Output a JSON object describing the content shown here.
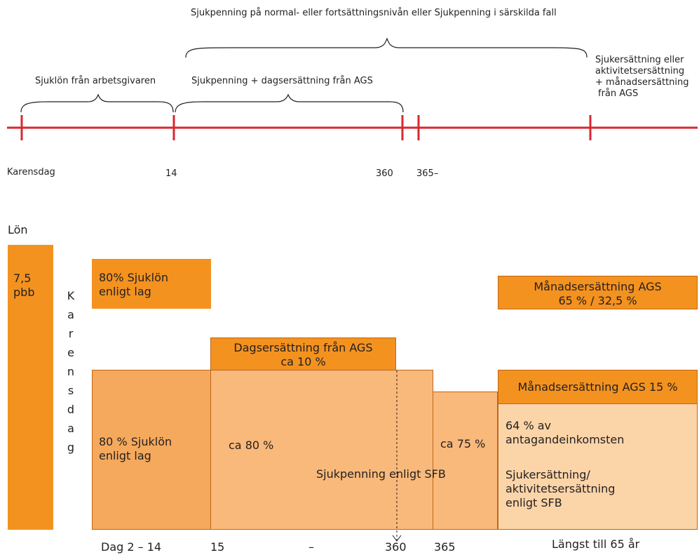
{
  "timeline": {
    "top_caption": "Sjukpenning på normal- eller fortsättningsnivån eller Sjukpenning i särskilda fall",
    "brace_labels": {
      "employer": "Sjuklön från arbetsgivaren",
      "sickpay": "Sjukpenning + dagsersättning från AGS",
      "disability": [
        "Sjukersättning eller",
        "aktivitetsersättning",
        "+ månadsersättning",
        "från AGS"
      ]
    },
    "ticks": [
      "Karensdag",
      "14",
      "360",
      "365–"
    ],
    "line_color": "#d7282f"
  },
  "blocks": {
    "salary_label": "Lön",
    "salary_bar": [
      "7,5",
      "pbb"
    ],
    "karensdag_vertical": [
      "K",
      "a",
      "r",
      "e",
      "n",
      "s",
      "d",
      "a",
      "g"
    ],
    "sjuklon_top": [
      "80% Sjuklön",
      "enligt lag"
    ],
    "monthly_top": [
      "Månadsersättning AGS",
      "65 % / 32,5 %"
    ],
    "daily_ags": [
      "Dagsersättning från AGS",
      "ca 10 %"
    ],
    "sjuklon_main": [
      "80 % Sjuklön",
      "enligt lag"
    ],
    "ca80": "ca 80 %",
    "sjukpenning_sfb": "Sjukpenning enligt SFB",
    "ca75": "ca 75 %",
    "monthly_15": "Månadsersättning AGS 15 %",
    "pct64": [
      "64 % av",
      "antagandeinkomsten"
    ],
    "sjukersattning": [
      "Sjukersättning/",
      "aktivitetsersättning",
      "enligt SFB"
    ]
  },
  "bottom_axis": [
    "Dag 2 – 14",
    "15",
    "–",
    "360",
    "365",
    "Längst till 65 år"
  ],
  "colors": {
    "dark_orange": "#f3921f",
    "mid_orange": "#f5a95c",
    "light_orange": "#f8b97b",
    "pale_orange": "#fbd4a8"
  }
}
